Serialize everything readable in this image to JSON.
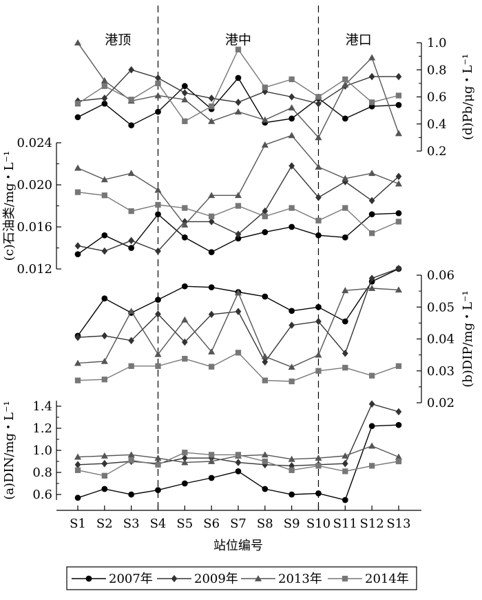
{
  "chart_data": {
    "type": "line",
    "x_label": "站位编号",
    "stations": [
      "S1",
      "S2",
      "S3",
      "S4",
      "S5",
      "S6",
      "S7",
      "S8",
      "S9",
      "S10",
      "S11",
      "S12",
      "S13"
    ],
    "regions": [
      {
        "label": "港顶",
        "at": "S2.5"
      },
      {
        "label": "港中",
        "at": "S7"
      },
      {
        "label": "港口",
        "at": "S11.5"
      }
    ],
    "dividers": [
      "S4",
      "S10"
    ],
    "series_meta": [
      {
        "key": "s2007",
        "name": "2007年",
        "marker": "circle",
        "color": "#000000"
      },
      {
        "key": "s2009",
        "name": "2009年",
        "marker": "diamond",
        "color": "#333333"
      },
      {
        "key": "s2013",
        "name": "2013年",
        "marker": "triangle",
        "color": "#555555"
      },
      {
        "key": "s2014",
        "name": "2014年",
        "marker": "square",
        "color": "#777777"
      }
    ],
    "panels": [
      {
        "id": "d",
        "ylabel": "(d)Pb/μg・L⁻¹",
        "ylim": [
          0.2,
          1.0
        ],
        "yticks": [
          "0.2",
          "0.4",
          "0.6",
          "0.8",
          "1.0"
        ],
        "axis_side": "right",
        "series": {
          "s2007": [
            0.45,
            0.55,
            0.39,
            0.49,
            0.68,
            0.51,
            0.74,
            0.41,
            0.44,
            0.59,
            0.44,
            0.53,
            0.54
          ],
          "s2009": [
            0.57,
            0.59,
            0.8,
            0.74,
            0.63,
            0.59,
            0.56,
            0.64,
            0.6,
            0.55,
            0.68,
            0.75,
            0.75
          ],
          "s2013": [
            1.0,
            0.72,
            0.57,
            0.61,
            0.58,
            0.42,
            0.49,
            0.43,
            0.52,
            0.3,
            0.69,
            0.89,
            0.33
          ],
          "s2014": [
            0.55,
            0.68,
            0.58,
            0.7,
            0.42,
            0.53,
            0.95,
            0.67,
            0.73,
            0.6,
            0.73,
            0.56,
            0.61
          ]
        }
      },
      {
        "id": "c",
        "ylabel": "(c)石油类/mg・L⁻¹",
        "ylim": [
          0.012,
          0.024
        ],
        "yticks": [
          "0.012",
          "0.016",
          "0.020",
          "0.024"
        ],
        "axis_side": "left",
        "series": {
          "s2007": [
            0.0134,
            0.0152,
            0.014,
            0.0172,
            0.015,
            0.0136,
            0.0149,
            0.0155,
            0.016,
            0.0152,
            0.015,
            0.0172,
            0.0173
          ],
          "s2009": [
            0.0142,
            0.0137,
            0.0147,
            0.0137,
            0.0165,
            0.0165,
            0.0153,
            0.0175,
            0.0218,
            0.0188,
            0.0203,
            0.0185,
            0.0208
          ],
          "s2013": [
            0.0216,
            0.0205,
            0.0211,
            0.0195,
            0.0162,
            0.019,
            0.019,
            0.0238,
            0.0247,
            0.0217,
            0.0206,
            0.0211,
            0.0201
          ],
          "s2014": [
            0.0193,
            0.019,
            0.0175,
            0.0181,
            0.0178,
            0.017,
            0.018,
            0.017,
            0.0178,
            0.0166,
            0.0178,
            0.0154,
            0.0165
          ]
        }
      },
      {
        "id": "b",
        "ylabel": "(b)DIP/mg・L⁻¹",
        "ylim": [
          0.02,
          0.06
        ],
        "yticks": [
          "0.02",
          "0.03",
          "0.04",
          "0.05",
          "0.06"
        ],
        "axis_side": "right",
        "series": {
          "s2007": [
            0.041,
            0.0527,
            0.0482,
            0.0523,
            0.0565,
            0.0562,
            0.0547,
            0.0533,
            0.0488,
            0.05,
            0.0455,
            0.058,
            0.062
          ],
          "s2009": [
            0.0405,
            0.041,
            0.0395,
            0.0478,
            0.039,
            0.0477,
            0.0486,
            0.0328,
            0.0443,
            0.0455,
            0.0355,
            0.059,
            0.0621
          ],
          "s2013": [
            0.0324,
            0.033,
            0.0487,
            0.0352,
            0.046,
            0.036,
            0.0545,
            0.0345,
            0.0312,
            0.035,
            0.0552,
            0.0559,
            0.0554
          ],
          "s2014": [
            0.027,
            0.0273,
            0.0315,
            0.0315,
            0.0338,
            0.0313,
            0.0357,
            0.027,
            0.0267,
            0.03,
            0.031,
            0.0285,
            0.0315
          ]
        }
      },
      {
        "id": "a",
        "ylabel": "(a)DIN/mg・L⁻¹",
        "ylim": [
          0.55,
          1.45
        ],
        "yticks": [
          "0.6",
          "0.8",
          "1.0",
          "1.2",
          "1.4"
        ],
        "axis_side": "left",
        "series": {
          "s2007": [
            0.57,
            0.65,
            0.6,
            0.64,
            0.7,
            0.75,
            0.81,
            0.65,
            0.6,
            0.61,
            0.55,
            1.22,
            1.23
          ],
          "s2009": [
            0.87,
            0.88,
            0.9,
            0.88,
            0.93,
            0.93,
            0.89,
            0.87,
            0.86,
            0.87,
            0.88,
            1.42,
            1.35
          ],
          "s2013": [
            0.94,
            0.95,
            0.96,
            0.93,
            0.89,
            0.9,
            0.95,
            0.96,
            0.92,
            0.93,
            0.95,
            1.04,
            0.94
          ],
          "s2014": [
            0.82,
            0.77,
            0.91,
            0.87,
            0.98,
            0.96,
            0.96,
            0.9,
            0.82,
            0.86,
            0.81,
            0.86,
            0.9
          ]
        }
      }
    ],
    "legend": {
      "placement": "bottom"
    }
  }
}
